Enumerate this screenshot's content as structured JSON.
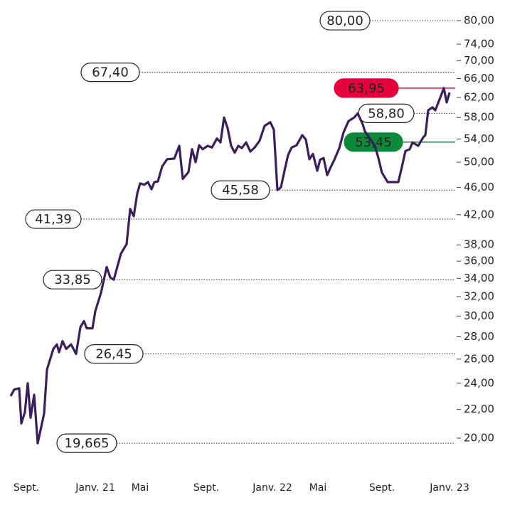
{
  "chart_data": {
    "type": "line",
    "log_scale": true,
    "grid": false,
    "x": [
      0,
      1,
      2.4,
      3,
      4,
      4.8,
      5.6,
      6.6,
      7.6,
      9.4,
      10.2,
      12,
      13,
      13.6,
      14.6,
      15.6,
      17,
      18.4,
      19.6,
      20.6,
      21.4,
      23,
      23.8,
      25.4,
      27,
      28,
      29,
      31,
      32.6,
      33.6,
      34.6,
      35.6,
      36.4,
      37.6,
      38.6,
      39.6,
      40.4,
      41.4,
      42.6,
      44,
      46,
      47.4,
      48.4,
      50,
      51,
      52,
      53,
      54,
      55.4,
      56.6,
      58,
      59,
      60,
      61,
      62,
      63,
      64,
      65,
      66.2,
      67.4,
      68.6,
      70,
      71.4,
      73,
      74,
      75,
      76,
      77,
      78,
      79,
      80.4,
      82,
      83,
      84,
      85,
      86.2,
      87,
      88,
      89,
      90,
      91,
      92.4,
      93.6,
      95,
      96.6,
      97.6,
      99,
      99.6,
      101,
      102.4,
      103.4,
      104.4,
      106,
      107.4,
      109,
      110,
      111,
      112.2,
      113,
      114.6,
      116,
      116.6,
      117.4,
      118.6,
      119.4,
      120.6,
      121.8,
      122.6,
      123.4
    ],
    "series": [
      {
        "color": "#3b1f5c",
        "values": [
          23.0,
          23.5,
          23.6,
          21.0,
          21.8,
          24.0,
          21.4,
          23.1,
          19.665,
          21.7,
          25.1,
          26.9,
          27.3,
          26.6,
          27.6,
          26.9,
          27.3,
          26.45,
          28.9,
          29.5,
          28.8,
          28.8,
          30.5,
          32.4,
          35.3,
          34.1,
          33.85,
          36.9,
          38.1,
          42.8,
          41.8,
          45.1,
          46.6,
          46.4,
          46.8,
          45.7,
          46.8,
          46.9,
          49.3,
          50.5,
          50.6,
          52.8,
          47.3,
          48.4,
          52.2,
          50.0,
          52.9,
          52.2,
          52.8,
          52.5,
          54.1,
          53.4,
          58.0,
          56.0,
          52.8,
          51.6,
          52.8,
          52.4,
          53.4,
          51.8,
          52.5,
          53.7,
          56.4,
          57.1,
          55.7,
          45.58,
          46.0,
          48.6,
          51.2,
          52.5,
          52.9,
          54.7,
          53.9,
          50.5,
          51.4,
          48.6,
          50.4,
          50.7,
          47.9,
          49.2,
          50.4,
          52.4,
          55.2,
          57.3,
          58.0,
          58.8,
          56.7,
          55.4,
          54.1,
          52.8,
          50.7,
          48.3,
          46.8,
          46.8,
          46.8,
          49.2,
          51.9,
          52.2,
          53.4,
          52.8,
          54.3,
          54.7,
          59.4,
          60.0,
          59.4,
          61.6,
          63.95,
          61.0,
          63.0
        ]
      }
    ],
    "xlim": [
      0,
      123.4
    ],
    "xticks": [
      {
        "value": 4.4,
        "label": "Sept."
      },
      {
        "value": 23.8,
        "label": "Janv. 21"
      },
      {
        "value": 36.4,
        "label": "Mai"
      },
      {
        "value": 55,
        "label": "Sept."
      },
      {
        "value": 73.6,
        "label": "Janv. 22"
      },
      {
        "value": 86.4,
        "label": "Mai"
      },
      {
        "value": 104.4,
        "label": "Sept."
      },
      {
        "value": 123.4,
        "label": "Janv. 23"
      }
    ],
    "ylim": [
      19,
      82
    ],
    "yticks": [
      {
        "value": 20,
        "label": "20,00"
      },
      {
        "value": 22,
        "label": "22,00"
      },
      {
        "value": 24,
        "label": "24,00"
      },
      {
        "value": 26,
        "label": "26,00"
      },
      {
        "value": 28,
        "label": "28,00"
      },
      {
        "value": 30,
        "label": "30,00"
      },
      {
        "value": 32,
        "label": "32,00"
      },
      {
        "value": 34,
        "label": "34,00"
      },
      {
        "value": 36,
        "label": "36,00"
      },
      {
        "value": 38,
        "label": "38,00"
      },
      {
        "value": 42,
        "label": "42,00"
      },
      {
        "value": 46,
        "label": "46,00"
      },
      {
        "value": 50,
        "label": "50,00"
      },
      {
        "value": 54,
        "label": "54,00"
      },
      {
        "value": 58,
        "label": "58,00"
      },
      {
        "value": 62,
        "label": "62,00"
      },
      {
        "value": 66,
        "label": "66,00"
      },
      {
        "value": 70,
        "label": "70,00"
      },
      {
        "value": 74,
        "label": "74,00"
      },
      {
        "value": 80,
        "label": "80,00"
      }
    ],
    "annotations": [
      {
        "value": 80,
        "label": "80,00"
      },
      {
        "value": 67.4,
        "label": "67,40"
      },
      {
        "value": 41.39,
        "label": "41,39"
      },
      {
        "value": 33.85,
        "label": "33,85"
      },
      {
        "value": 26.45,
        "label": "26,45"
      },
      {
        "value": 19.665,
        "label": "19,665"
      },
      {
        "value": 45.58,
        "label": "45,58"
      },
      {
        "value": 58.8,
        "label": "58,80"
      },
      {
        "value": 63.95,
        "label": "63,95",
        "color": "#e4003b"
      },
      {
        "value": 53.45,
        "label": "53,45",
        "color": "#0b8a3b"
      }
    ]
  }
}
